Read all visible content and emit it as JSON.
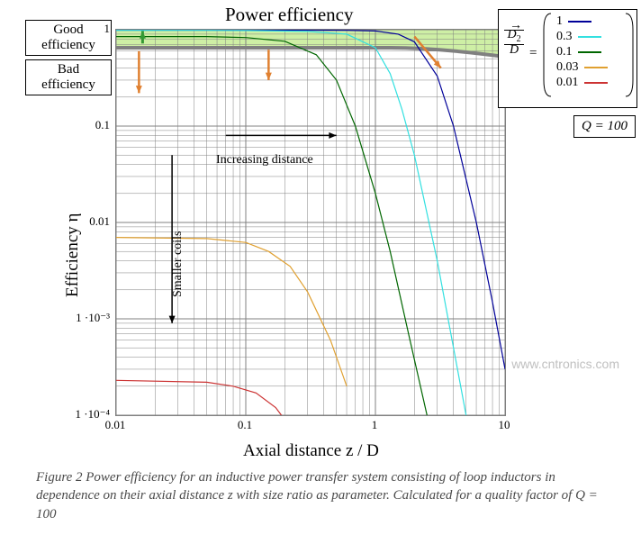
{
  "chart": {
    "type": "line-loglog",
    "title": "Power efficiency",
    "xlabel": "Axial distance z / D",
    "ylabel": "Efficiency η",
    "xlim": [
      0.01,
      10
    ],
    "ylim": [
      0.0001,
      1
    ],
    "x_decades": [
      0.01,
      0.1,
      1,
      10
    ],
    "y_decades": [
      0.0001,
      0.001,
      0.01,
      0.1,
      1
    ],
    "y_tick_labels": [
      "1 ·10⁻⁴",
      "1 ·10⁻³",
      "0.01",
      "0.1",
      "1"
    ],
    "x_tick_labels": [
      "0.01",
      "0.1",
      "1",
      "10"
    ],
    "grid_color": "#808080",
    "minor_grid_color": "#808080",
    "background_color": "#ffffff",
    "linewidth": 1.2,
    "series": [
      {
        "name": "D2/D=1",
        "ratio": "1",
        "color": "#000099",
        "x": [
          0.01,
          0.05,
          0.1,
          0.3,
          0.6,
          1,
          1.5,
          2,
          3,
          4,
          6,
          8,
          10
        ],
        "y": [
          0.99,
          0.99,
          0.99,
          0.99,
          0.985,
          0.97,
          0.9,
          0.75,
          0.33,
          0.1,
          0.01,
          0.0015,
          0.0003
        ]
      },
      {
        "name": "D2/D=0.3",
        "ratio": "0.3",
        "color": "#33e0e0",
        "x": [
          0.01,
          0.05,
          0.1,
          0.3,
          0.6,
          1,
          1.3,
          1.6,
          2,
          3,
          5
        ],
        "y": [
          0.985,
          0.985,
          0.98,
          0.96,
          0.9,
          0.65,
          0.35,
          0.15,
          0.05,
          0.004,
          0.0001
        ]
      },
      {
        "name": "D2/D=0.1",
        "ratio": "0.1",
        "color": "#006600",
        "x": [
          0.01,
          0.05,
          0.1,
          0.2,
          0.35,
          0.5,
          0.7,
          1,
          1.3,
          1.8,
          2.5
        ],
        "y": [
          0.85,
          0.85,
          0.83,
          0.76,
          0.55,
          0.3,
          0.1,
          0.02,
          0.005,
          0.0007,
          0.0001
        ]
      },
      {
        "name": "D2/D=0.03",
        "ratio": "0.03",
        "color": "#e0a030",
        "x": [
          0.01,
          0.05,
          0.1,
          0.15,
          0.22,
          0.3,
          0.45,
          0.6,
          0.9,
          1.3
        ],
        "y": [
          0.007,
          0.0068,
          0.0062,
          0.005,
          0.0035,
          0.0019,
          0.0006,
          0.0002,
          3e-05,
          5e-06
        ]
      },
      {
        "name": "D2/D=0.01",
        "ratio": "0.01",
        "color": "#cc3333",
        "x": [
          0.01,
          0.05,
          0.08,
          0.12,
          0.17,
          0.25,
          0.35
        ],
        "y": [
          0.00023,
          0.00022,
          0.0002,
          0.00017,
          0.00012,
          6e-05,
          2e-05
        ]
      }
    ],
    "good_band": {
      "ylo": 0.65,
      "yhi": 1,
      "fill": "#b7e87a",
      "opacity": 0.68,
      "border_color": "#808080",
      "border_width": 4
    },
    "annotations": {
      "good_eff": "Good\nefficiency",
      "bad_eff": "Bad\nefficiency",
      "inc_dist": "Increasing distance",
      "smaller": "Smaller coils",
      "arrow_color": "#e08030",
      "good_arrow_color": "#339933"
    },
    "legend": {
      "label_html": "D₂ / D  =",
      "param": "D₂/D"
    },
    "q_label": "Q = 100"
  },
  "caption": "Figure 2 Power efficiency for an inductive power transfer system consisting of loop inductors in dependence on their axial distance z with size ratio as parameter. Calculated for a quality factor of Q = 100",
  "watermark": "www.cntronics.com"
}
